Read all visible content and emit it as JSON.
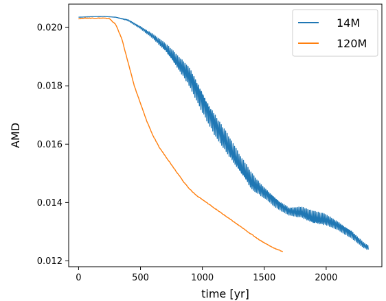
{
  "chart_data": {
    "type": "line",
    "title": "",
    "xlabel": "time [yr]",
    "ylabel": "AMD",
    "xlim": [
      -80,
      2450
    ],
    "ylim": [
      0.0118,
      0.0208
    ],
    "xticks": [
      0,
      500,
      1000,
      1500,
      2000
    ],
    "yticks": [
      0.012,
      0.014,
      0.016,
      0.018,
      0.02
    ],
    "xtick_labels": [
      "0",
      "500",
      "1000",
      "1500",
      "2000"
    ],
    "ytick_labels": [
      "0.012",
      "0.014",
      "0.016",
      "0.018",
      "0.020"
    ],
    "grid": false,
    "legend_position": "top-right",
    "series": [
      {
        "name": "14M",
        "color": "#1f77b4",
        "x": [
          0,
          100,
          200,
          300,
          400,
          500,
          600,
          700,
          800,
          900,
          1000,
          1100,
          1200,
          1300,
          1400,
          1500,
          1600,
          1700,
          1800,
          1900,
          2000,
          2100,
          2200,
          2300,
          2340
        ],
        "y": [
          0.02035,
          0.02037,
          0.02038,
          0.02035,
          0.02025,
          0.02,
          0.0197,
          0.0193,
          0.0188,
          0.0183,
          0.0175,
          0.0167,
          0.016,
          0.0153,
          0.0147,
          0.01435,
          0.014,
          0.0137,
          0.01365,
          0.01345,
          0.0134,
          0.0132,
          0.01295,
          0.01255,
          0.01245
        ],
        "oscillation": [
          0,
          0,
          0,
          0,
          2e-05,
          4e-05,
          8e-05,
          0.00015,
          0.00025,
          0.00035,
          0.0004,
          0.0004,
          0.00038,
          0.00035,
          0.0003,
          0.0002,
          0.00018,
          0.00014,
          0.0002,
          0.00025,
          0.0002,
          0.00015,
          0.00015,
          0.0001,
          8e-05
        ]
      },
      {
        "name": "120M",
        "color": "#ff7f0e",
        "x": [
          0,
          50,
          100,
          150,
          200,
          250,
          300,
          350,
          400,
          450,
          500,
          550,
          600,
          650,
          700,
          750,
          800,
          850,
          900,
          950,
          1000,
          1050,
          1100,
          1150,
          1200,
          1250,
          1300,
          1350,
          1400,
          1450,
          1500,
          1550,
          1600,
          1650
        ],
        "y": [
          0.0203,
          0.02032,
          0.02032,
          0.02032,
          0.02032,
          0.0203,
          0.0201,
          0.0196,
          0.0188,
          0.018,
          0.0174,
          0.0168,
          0.0163,
          0.0159,
          0.0156,
          0.0153,
          0.015,
          0.0147,
          0.01445,
          0.01425,
          0.0141,
          0.01395,
          0.0138,
          0.01365,
          0.0135,
          0.01335,
          0.0132,
          0.01305,
          0.0129,
          0.01275,
          0.01262,
          0.0125,
          0.0124,
          0.01232
        ]
      }
    ]
  }
}
